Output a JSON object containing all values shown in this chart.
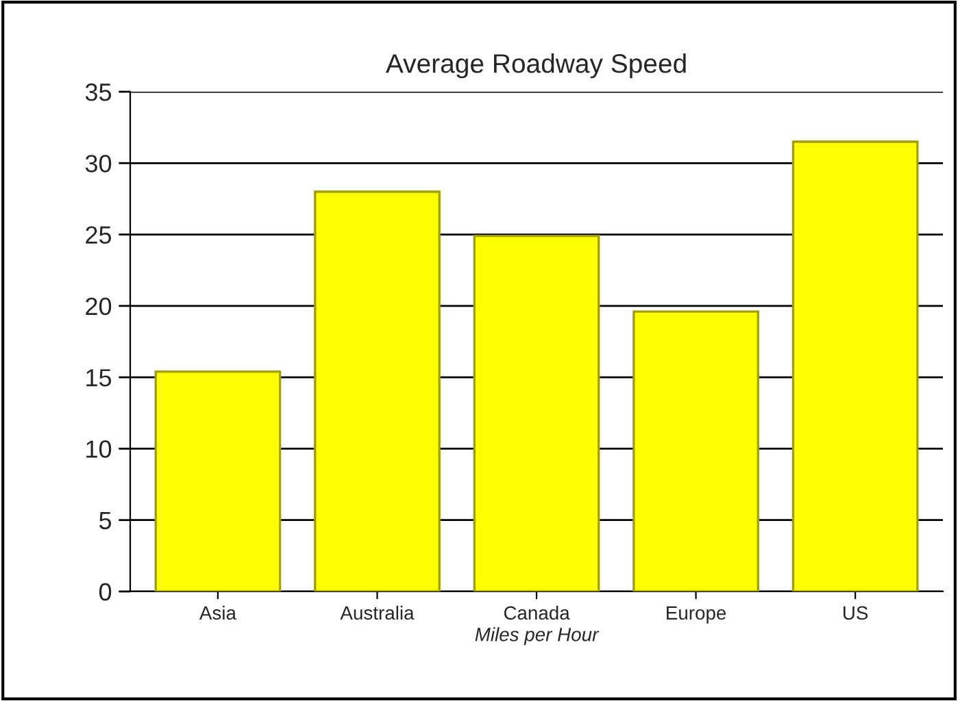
{
  "chart_data": {
    "type": "bar",
    "title": "Average Roadway Speed",
    "xlabel": "Miles per Hour",
    "categories": [
      "Asia",
      "Australia",
      "Canada",
      "Europe",
      "US"
    ],
    "values": [
      15.4,
      28,
      24.9,
      19.6,
      31.5
    ],
    "color": "#ffff00",
    "ylim": [
      0,
      35
    ],
    "yticks": [
      0,
      5,
      10,
      15,
      20,
      25,
      30,
      35
    ],
    "grid": "y"
  }
}
